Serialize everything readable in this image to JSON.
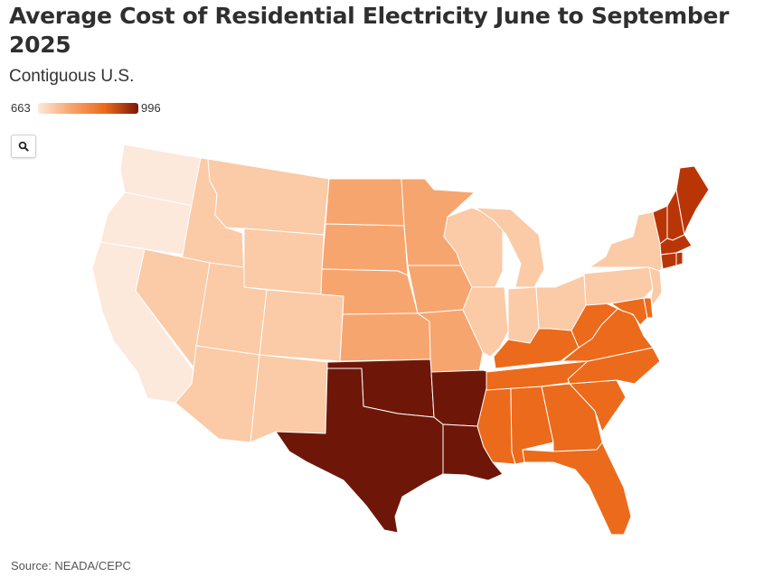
{
  "title": "Average Cost of Residential Electricity June to September 2025",
  "subtitle": "Contiguous U.S.",
  "legend": {
    "min_label": "663",
    "max_label": "996",
    "colors": [
      "#fde8da",
      "#f6a46b",
      "#ec6a1b",
      "#7a1808"
    ]
  },
  "zoom_button": {
    "icon": "search-icon"
  },
  "source": "Source: NEADA/CEPC",
  "colors": {
    "lightest": "#fde8dc",
    "light": "#fbcaa6",
    "medium_light": "#f7a56f",
    "medium": "#ec6a1b",
    "dark": "#ba3506",
    "darkest": "#6e1708"
  }
}
